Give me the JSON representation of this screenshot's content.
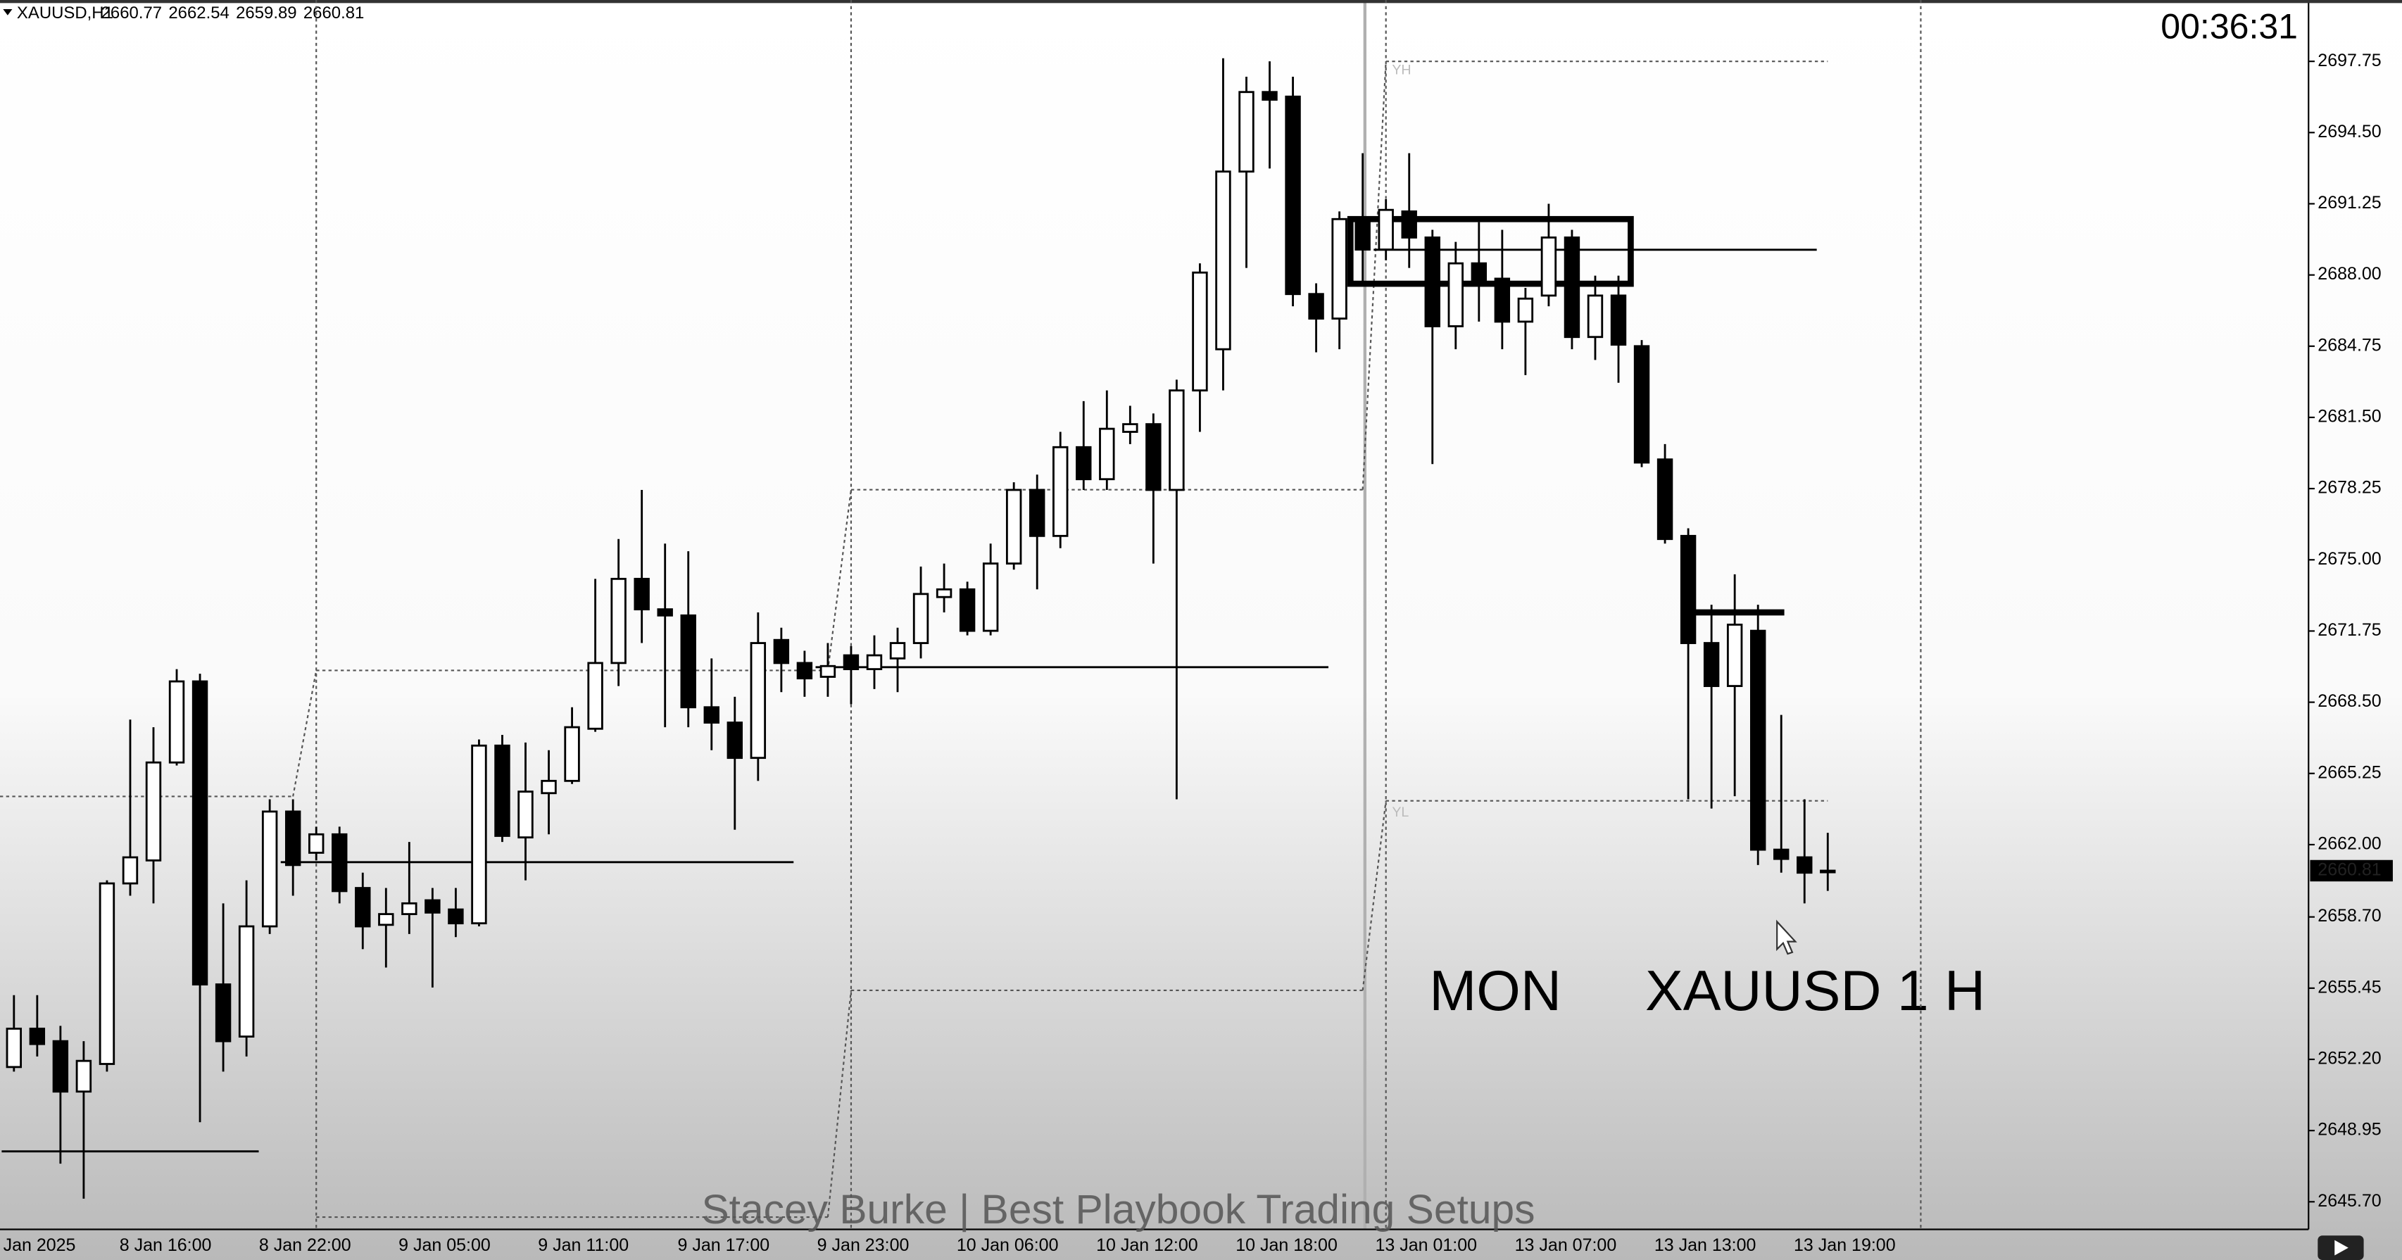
{
  "chart_data": {
    "type": "candlestick",
    "symbol": "XAUUSD,H1",
    "timer": "00:36:31",
    "annotations": [
      "MON",
      "XAUUSD 1 H"
    ],
    "watermark": "Stacey Burke | Best Playbook Trading Setups",
    "day_high_label": "YH",
    "day_low_label": "YL",
    "bull_color": "#ffffff",
    "bear_color": "#000000",
    "categories": [
      "Jan 2025",
      null,
      null,
      null,
      null,
      "8 Jan 16:00",
      null,
      null,
      null,
      null,
      null,
      "8 Jan 22:00",
      null,
      null,
      null,
      null,
      null,
      "9 Jan 05:00",
      null,
      null,
      null,
      null,
      null,
      "9 Jan 11:00",
      null,
      null,
      null,
      null,
      null,
      "9 Jan 17:00",
      null,
      null,
      null,
      null,
      null,
      "9 Jan 23:00",
      null,
      null,
      null,
      null,
      null,
      "10 Jan 06:00",
      null,
      null,
      null,
      null,
      null,
      "10 Jan 12:00",
      null,
      null,
      null,
      null,
      null,
      "10 Jan 18:00",
      null,
      null,
      null,
      null,
      null,
      "13 Jan 01:00",
      null,
      null,
      null,
      null,
      null,
      "13 Jan 07:00",
      null,
      null,
      null,
      null,
      null,
      "13 Jan 13:00",
      null,
      null,
      null,
      null,
      null,
      "13 Jan 19:00",
      null
    ],
    "open": [
      2651.85,
      2653.6,
      2653.03,
      2650.73,
      2651.99,
      2660.23,
      2661.28,
      2665.75,
      2669.45,
      2655.62,
      2653.24,
      2658.27,
      2663.51,
      2661.63,
      2662.47,
      2660.02,
      2658.34,
      2658.83,
      2659.46,
      2659.04,
      2658.41,
      2666.52,
      2662.33,
      2664.35,
      2664.91,
      2667.29,
      2670.29,
      2674.13,
      2672.74,
      2672.46,
      2668.27,
      2667.57,
      2665.96,
      2671.34,
      2670.29,
      2669.66,
      2670.64,
      2670.01,
      2670.5,
      2671.2,
      2673.3,
      2673.65,
      2671.76,
      2674.83,
      2678.19,
      2676.09,
      2680.14,
      2678.68,
      2680.84,
      2681.19,
      2678.19,
      2682.73,
      2684.61,
      2692.72,
      2696.35,
      2696.14,
      2687.13,
      2686.01,
      2690.41,
      2689.16,
      2690.9,
      2689.71,
      2685.66,
      2688.53,
      2687.83,
      2685.87,
      2687.06,
      2689.71,
      2685.17,
      2687.06,
      2684.75,
      2679.58,
      2676.09,
      2671.2,
      2669.24,
      2671.76,
      2661.77,
      2661.42,
      2660.77
    ],
    "high": [
      2655.13,
      2655.13,
      2653.73,
      2653.03,
      2660.37,
      2667.71,
      2667.36,
      2670.01,
      2669.8,
      2659.32,
      2660.37,
      2664.07,
      2664.07,
      2662.82,
      2662.82,
      2660.72,
      2660.02,
      2662.12,
      2660.02,
      2660.02,
      2666.8,
      2667.01,
      2666.66,
      2666.31,
      2668.27,
      2674.13,
      2675.95,
      2678.19,
      2675.74,
      2675.39,
      2670.5,
      2668.75,
      2672.6,
      2671.9,
      2670.85,
      2671.2,
      2671.06,
      2671.55,
      2671.9,
      2674.69,
      2674.83,
      2674.0,
      2675.74,
      2678.54,
      2678.89,
      2680.84,
      2682.24,
      2682.73,
      2682.03,
      2681.68,
      2683.22,
      2688.53,
      2697.89,
      2697.05,
      2697.75,
      2697.05,
      2687.62,
      2690.9,
      2693.56,
      2691.46,
      2693.56,
      2690.06,
      2689.51,
      2690.41,
      2690.06,
      2687.41,
      2691.25,
      2690.06,
      2687.97,
      2687.97,
      2685.03,
      2680.28,
      2676.44,
      2672.95,
      2674.34,
      2672.95,
      2667.92,
      2664.07,
      2662.54
    ],
    "low": [
      2651.64,
      2652.33,
      2647.44,
      2645.84,
      2651.64,
      2659.67,
      2659.32,
      2665.61,
      2649.33,
      2651.64,
      2652.33,
      2657.92,
      2659.67,
      2661.28,
      2659.32,
      2657.23,
      2656.39,
      2657.92,
      2655.48,
      2657.78,
      2658.27,
      2662.12,
      2660.37,
      2662.47,
      2664.77,
      2667.15,
      2669.24,
      2671.2,
      2667.36,
      2667.36,
      2666.31,
      2662.68,
      2664.91,
      2668.96,
      2668.75,
      2668.75,
      2668.41,
      2669.1,
      2668.96,
      2670.5,
      2672.6,
      2671.55,
      2671.55,
      2674.55,
      2673.65,
      2675.53,
      2678.19,
      2678.19,
      2680.28,
      2674.83,
      2664.07,
      2680.84,
      2682.73,
      2688.32,
      2692.86,
      2686.57,
      2684.47,
      2684.61,
      2687.62,
      2688.67,
      2688.32,
      2679.37,
      2684.61,
      2685.87,
      2684.61,
      2683.43,
      2686.57,
      2684.61,
      2684.12,
      2683.08,
      2679.23,
      2675.74,
      2664.07,
      2663.65,
      2664.21,
      2661.07,
      2660.72,
      2659.32,
      2659.89
    ],
    "close": [
      2653.6,
      2652.9,
      2650.73,
      2652.13,
      2660.23,
      2661.42,
      2665.75,
      2669.45,
      2655.62,
      2653.03,
      2658.27,
      2663.51,
      2661.07,
      2662.47,
      2659.88,
      2658.27,
      2658.83,
      2659.32,
      2658.9,
      2658.41,
      2666.52,
      2662.4,
      2664.42,
      2664.91,
      2667.36,
      2670.29,
      2674.13,
      2672.74,
      2672.46,
      2668.27,
      2667.57,
      2665.96,
      2671.2,
      2670.29,
      2669.59,
      2670.15,
      2670.01,
      2670.64,
      2671.2,
      2673.44,
      2673.65,
      2671.76,
      2674.83,
      2678.19,
      2676.09,
      2680.14,
      2678.68,
      2680.98,
      2681.19,
      2678.19,
      2682.73,
      2688.11,
      2692.72,
      2696.35,
      2696.0,
      2687.13,
      2686.01,
      2690.55,
      2689.16,
      2690.97,
      2689.71,
      2685.66,
      2688.53,
      2687.62,
      2685.87,
      2686.92,
      2689.71,
      2685.17,
      2687.06,
      2684.82,
      2679.44,
      2675.95,
      2671.2,
      2669.24,
      2672.04,
      2661.77,
      2661.35,
      2660.72,
      2660.81
    ],
    "ylim": [
      2644.44,
      2700.55
    ],
    "yticks": [
      {
        "value": 2697.75,
        "label": "2697.75"
      },
      {
        "value": 2694.5,
        "label": "2694.50"
      },
      {
        "value": 2691.25,
        "label": "2691.25"
      },
      {
        "value": 2688.0,
        "label": "2688.00"
      },
      {
        "value": 2684.75,
        "label": "2684.75"
      },
      {
        "value": 2681.5,
        "label": "2681.50"
      },
      {
        "value": 2678.25,
        "label": "2678.25"
      },
      {
        "value": 2675.0,
        "label": "2675.00"
      },
      {
        "value": 2671.75,
        "label": "2671.75"
      },
      {
        "value": 2668.5,
        "label": "2668.50"
      },
      {
        "value": 2665.25,
        "label": "2665.25"
      },
      {
        "value": 2662.0,
        "label": "2662.00"
      },
      {
        "value": 2658.7,
        "label": "2658.70"
      },
      {
        "value": 2655.45,
        "label": "2655.45"
      },
      {
        "value": 2652.2,
        "label": "2652.20"
      },
      {
        "value": 2648.95,
        "label": "2648.95"
      },
      {
        "value": 2645.7,
        "label": "2645.70"
      }
    ],
    "grid": false,
    "day_starts": [
      13,
      36,
      59,
      82
    ],
    "day_high": [
      2664.2,
      2669.95,
      2678.2,
      2697.75
    ],
    "day_low": [
      null,
      2645.0,
      2655.35,
      2664.0
    ],
    "levels": [
      {
        "value": 2648.0,
        "from": 0,
        "to": 10
      },
      {
        "value": 2661.2,
        "from": 12,
        "to": 33
      },
      {
        "value": 2670.1,
        "from": 35,
        "to": 56
      },
      {
        "value": 2689.15,
        "from": 59,
        "to": 77
      }
    ],
    "thick_levels": [
      {
        "value": 2672.6,
        "from": 72,
        "to": 76
      }
    ],
    "zones": [
      {
        "top": 2690.55,
        "bottom": 2687.6,
        "from": 58,
        "to": 69
      }
    ]
  }
}
